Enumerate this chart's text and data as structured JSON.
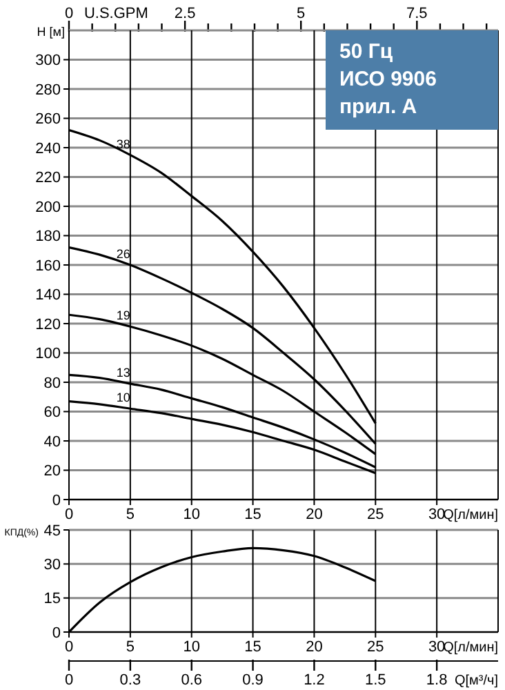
{
  "chart_data": [
    {
      "type": "line",
      "xlabel": "Q[л/мин]",
      "ylabel": "H [м]",
      "x2label": "U.S.GPM",
      "annotations": [
        "50 Гц",
        "ИСО 9906 прил. А"
      ],
      "x": [
        0,
        2.5,
        5,
        7.5,
        10,
        12.5,
        15,
        17.5,
        20,
        22.5,
        25
      ],
      "series": [
        {
          "name": "38",
          "color": "#000000",
          "values": [
            252,
            245,
            235,
            223,
            207,
            190,
            169,
            145,
            117,
            86,
            52
          ]
        },
        {
          "name": "26",
          "color": "#000000",
          "values": [
            172,
            167,
            160,
            151,
            141,
            130,
            117,
            100,
            82,
            61,
            38
          ]
        },
        {
          "name": "19",
          "color": "#000000",
          "values": [
            126,
            123,
            118,
            112,
            105,
            96,
            85,
            74,
            60,
            46,
            31
          ]
        },
        {
          "name": "13",
          "color": "#000000",
          "values": [
            85,
            83,
            79,
            75,
            69,
            63,
            56,
            49,
            41,
            32,
            22
          ]
        },
        {
          "name": "10",
          "color": "#000000",
          "values": [
            67,
            65,
            62,
            59,
            55,
            51,
            46,
            40,
            34,
            26,
            18
          ]
        }
      ],
      "xlim": [
        0,
        35
      ],
      "xticks": [
        0,
        5,
        10,
        15,
        20,
        25,
        30
      ],
      "ylim": [
        0,
        320
      ],
      "yticks": [
        0,
        20,
        40,
        60,
        80,
        100,
        120,
        140,
        160,
        180,
        200,
        220,
        240,
        260,
        280,
        300
      ],
      "x2lim": [
        0,
        9.25
      ],
      "x2ticks": [
        0,
        {
          "value": 0.5,
          "label": null
        },
        {
          "value": 1,
          "label": null
        },
        {
          "value": 1.5,
          "label": null
        },
        {
          "value": 2,
          "label": null
        },
        2.5,
        {
          "value": 3,
          "label": null
        },
        {
          "value": 3.5,
          "label": null
        },
        {
          "value": 4,
          "label": null
        },
        {
          "value": 4.5,
          "label": null
        },
        5,
        {
          "value": 5.5,
          "label": null
        },
        {
          "value": 6,
          "label": null
        },
        {
          "value": 6.5,
          "label": null
        },
        {
          "value": 7,
          "label": null
        },
        7.5,
        {
          "value": 8,
          "label": null
        },
        {
          "value": 8.5,
          "label": null
        },
        {
          "value": 9,
          "label": null
        }
      ],
      "grid": true
    },
    {
      "type": "line",
      "xlabel": "Q[л/мин]",
      "ylabel": "КПД(%)",
      "x2label": "Q[м³/ч]",
      "x": [
        0,
        2.5,
        5,
        7.5,
        10,
        12.5,
        15,
        17.5,
        20,
        22.5,
        25
      ],
      "values": [
        0,
        13,
        22,
        28.5,
        33,
        35.5,
        37,
        36,
        33.5,
        28.5,
        22.5
      ],
      "color": "#000000",
      "xlim": [
        0,
        35
      ],
      "xticks": [
        0,
        5,
        10,
        15,
        20,
        25,
        30
      ],
      "ylim": [
        0,
        45
      ],
      "yticks": [
        0,
        15,
        30,
        45
      ],
      "x2lim": [
        0,
        2.1
      ],
      "x2ticks": [
        0,
        0.3,
        0.6,
        0.9,
        1.2,
        1.5,
        1.8
      ],
      "grid": true
    }
  ]
}
